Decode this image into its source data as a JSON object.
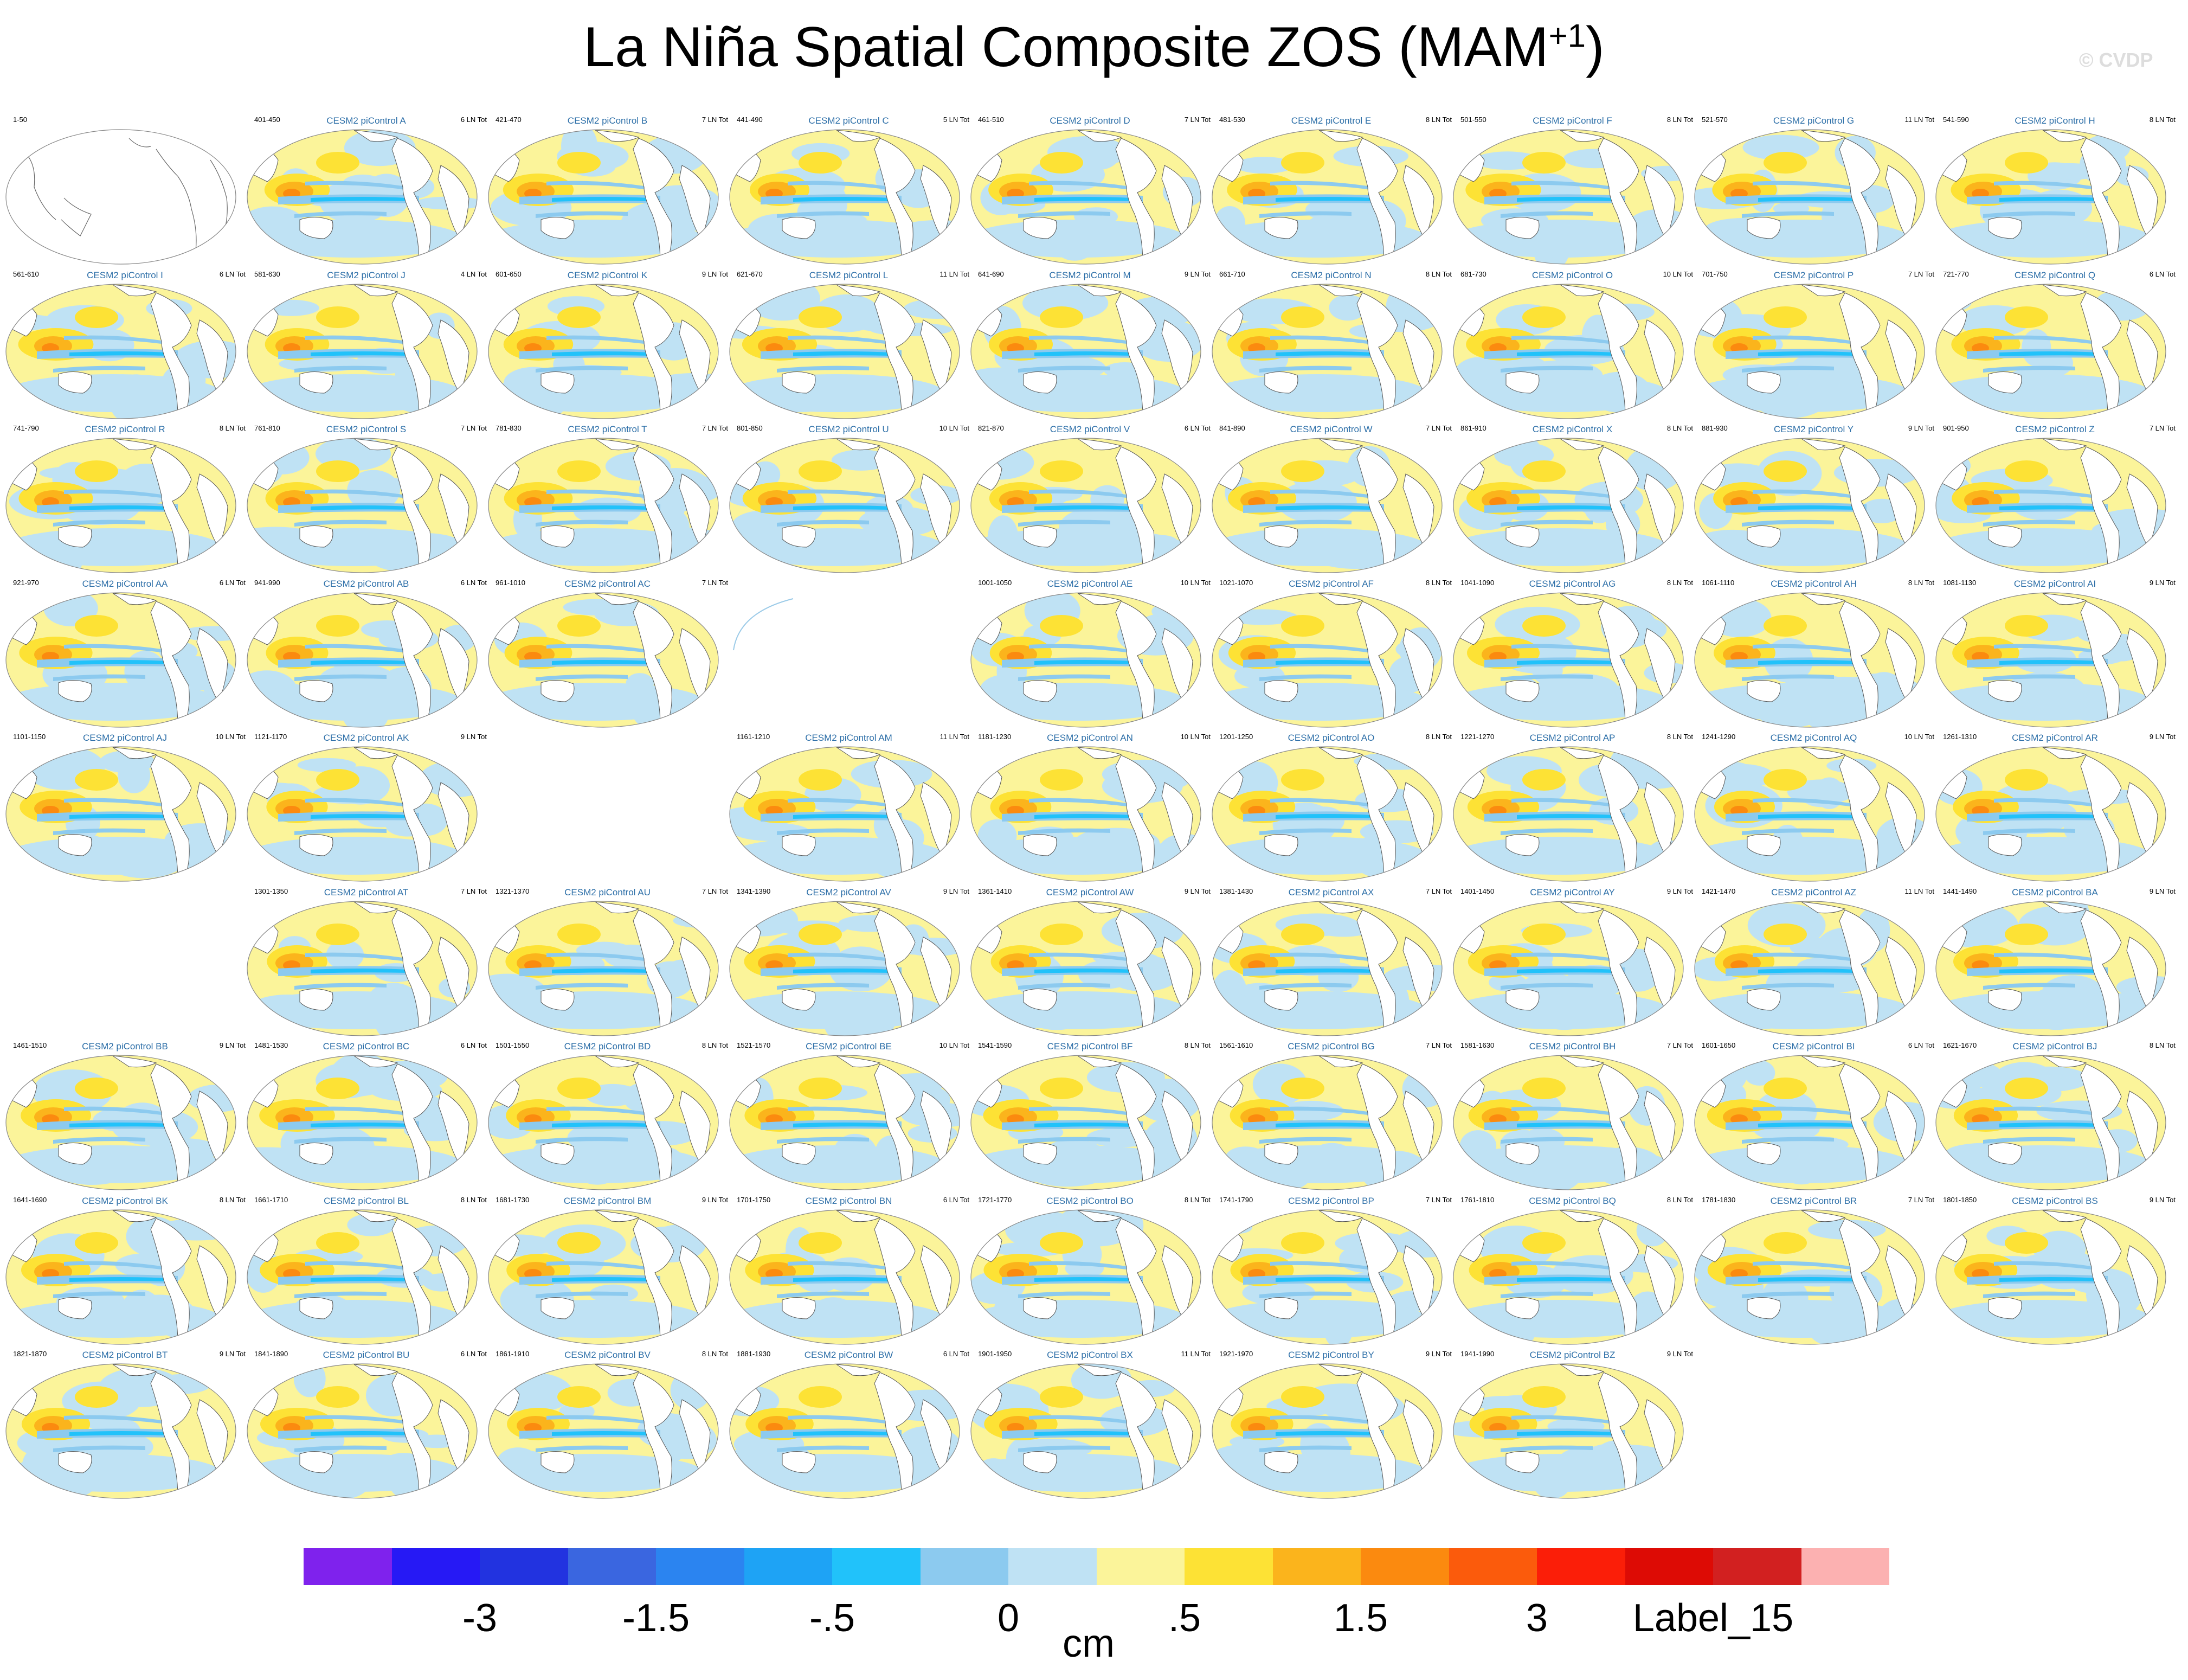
{
  "title": "La Niña Spatial Composite ZOS (MAM",
  "title_sup": "+1",
  "title_close": ")",
  "watermark": "© CVDP",
  "chart_data": {
    "type": "heatmap",
    "description_variable": "ZOS",
    "units": "cm",
    "colorbar": {
      "colors": [
        "#7f22ed",
        "#2619f5",
        "#2233e0",
        "#3a66e0",
        "#2b84f0",
        "#1ea3f5",
        "#21c2fa",
        "#8ccaef",
        "#bfe2f4",
        "#fbf49a",
        "#fde235",
        "#fbb41c",
        "#fb8a0f",
        "#fb5b0c",
        "#fb1e08",
        "#dd0b05",
        "#d22020",
        "#fcb1b1"
      ],
      "labels": [
        "-3",
        "-1.5",
        "-.5",
        "0",
        ".5",
        "1.5",
        "3",
        "Label_15"
      ]
    },
    "panels": [
      {
        "title": "",
        "years": "1-50",
        "ln_tot": "",
        "empty": false,
        "blank_map": true
      },
      {
        "title": "CESM2 piControl A",
        "years": "401-450",
        "ln_tot": "6 LN Tot"
      },
      {
        "title": "CESM2 piControl B",
        "years": "421-470",
        "ln_tot": "7 LN Tot"
      },
      {
        "title": "CESM2 piControl C",
        "years": "441-490",
        "ln_tot": "5 LN Tot"
      },
      {
        "title": "CESM2 piControl D",
        "years": "461-510",
        "ln_tot": "7 LN Tot"
      },
      {
        "title": "CESM2 piControl E",
        "years": "481-530",
        "ln_tot": "8 LN Tot"
      },
      {
        "title": "CESM2 piControl F",
        "years": "501-550",
        "ln_tot": "8 LN Tot"
      },
      {
        "title": "CESM2 piControl G",
        "years": "521-570",
        "ln_tot": "11 LN Tot"
      },
      {
        "title": "CESM2 piControl H",
        "years": "541-590",
        "ln_tot": "8 LN Tot"
      },
      {
        "title": "CESM2 piControl I",
        "years": "561-610",
        "ln_tot": "6 LN Tot"
      },
      {
        "title": "CESM2 piControl J",
        "years": "581-630",
        "ln_tot": "4 LN Tot"
      },
      {
        "title": "CESM2 piControl K",
        "years": "601-650",
        "ln_tot": "9 LN Tot"
      },
      {
        "title": "CESM2 piControl L",
        "years": "621-670",
        "ln_tot": "11 LN Tot"
      },
      {
        "title": "CESM2 piControl M",
        "years": "641-690",
        "ln_tot": "9 LN Tot"
      },
      {
        "title": "CESM2 piControl N",
        "years": "661-710",
        "ln_tot": "8 LN Tot"
      },
      {
        "title": "CESM2 piControl O",
        "years": "681-730",
        "ln_tot": "10 LN Tot"
      },
      {
        "title": "CESM2 piControl P",
        "years": "701-750",
        "ln_tot": "7 LN Tot"
      },
      {
        "title": "CESM2 piControl Q",
        "years": "721-770",
        "ln_tot": "6 LN Tot"
      },
      {
        "title": "CESM2 piControl R",
        "years": "741-790",
        "ln_tot": "8 LN Tot"
      },
      {
        "title": "CESM2 piControl S",
        "years": "761-810",
        "ln_tot": "7 LN Tot"
      },
      {
        "title": "CESM2 piControl T",
        "years": "781-830",
        "ln_tot": "7 LN Tot"
      },
      {
        "title": "CESM2 piControl U",
        "years": "801-850",
        "ln_tot": "10 LN Tot"
      },
      {
        "title": "CESM2 piControl V",
        "years": "821-870",
        "ln_tot": "6 LN Tot"
      },
      {
        "title": "CESM2 piControl W",
        "years": "841-890",
        "ln_tot": "7 LN Tot"
      },
      {
        "title": "CESM2 piControl X",
        "years": "861-910",
        "ln_tot": "8 LN Tot"
      },
      {
        "title": "CESM2 piControl Y",
        "years": "881-930",
        "ln_tot": "9 LN Tot"
      },
      {
        "title": "CESM2 piControl Z",
        "years": "901-950",
        "ln_tot": "7 LN Tot"
      },
      {
        "title": "CESM2 piControl AA",
        "years": "921-970",
        "ln_tot": "6 LN Tot"
      },
      {
        "title": "CESM2 piControl AB",
        "years": "941-990",
        "ln_tot": "6 LN Tot"
      },
      {
        "title": "CESM2 piControl AC",
        "years": "961-1010",
        "ln_tot": "7 LN Tot"
      },
      {
        "title": "",
        "years": "",
        "ln_tot": "",
        "empty": true,
        "partial": true
      },
      {
        "title": "CESM2 piControl AE",
        "years": "1001-1050",
        "ln_tot": "10 LN Tot"
      },
      {
        "title": "CESM2 piControl AF",
        "years": "1021-1070",
        "ln_tot": "8 LN Tot"
      },
      {
        "title": "CESM2 piControl AG",
        "years": "1041-1090",
        "ln_tot": "8 LN Tot"
      },
      {
        "title": "CESM2 piControl AH",
        "years": "1061-1110",
        "ln_tot": "8 LN Tot"
      },
      {
        "title": "CESM2 piControl AI",
        "years": "1081-1130",
        "ln_tot": "9 LN Tot"
      },
      {
        "title": "CESM2 piControl AJ",
        "years": "1101-1150",
        "ln_tot": "10 LN Tot"
      },
      {
        "title": "CESM2 piControl AK",
        "years": "1121-1170",
        "ln_tot": "9 LN Tot"
      },
      {
        "title": "",
        "years": "",
        "ln_tot": "",
        "empty": true
      },
      {
        "title": "CESM2 piControl AM",
        "years": "1161-1210",
        "ln_tot": "11 LN Tot"
      },
      {
        "title": "CESM2 piControl AN",
        "years": "1181-1230",
        "ln_tot": "10 LN Tot"
      },
      {
        "title": "CESM2 piControl AO",
        "years": "1201-1250",
        "ln_tot": "8 LN Tot"
      },
      {
        "title": "CESM2 piControl AP",
        "years": "1221-1270",
        "ln_tot": "8 LN Tot"
      },
      {
        "title": "CESM2 piControl AQ",
        "years": "1241-1290",
        "ln_tot": "10 LN Tot"
      },
      {
        "title": "CESM2 piControl AR",
        "years": "1261-1310",
        "ln_tot": "9 LN Tot"
      },
      {
        "title": "",
        "years": "",
        "ln_tot": "",
        "empty": true
      },
      {
        "title": "CESM2 piControl AT",
        "years": "1301-1350",
        "ln_tot": "7 LN Tot"
      },
      {
        "title": "CESM2 piControl AU",
        "years": "1321-1370",
        "ln_tot": "7 LN Tot"
      },
      {
        "title": "CESM2 piControl AV",
        "years": "1341-1390",
        "ln_tot": "9 LN Tot"
      },
      {
        "title": "CESM2 piControl AW",
        "years": "1361-1410",
        "ln_tot": "9 LN Tot"
      },
      {
        "title": "CESM2 piControl AX",
        "years": "1381-1430",
        "ln_tot": "7 LN Tot"
      },
      {
        "title": "CESM2 piControl AY",
        "years": "1401-1450",
        "ln_tot": "9 LN Tot"
      },
      {
        "title": "CESM2 piControl AZ",
        "years": "1421-1470",
        "ln_tot": "11 LN Tot"
      },
      {
        "title": "CESM2 piControl BA",
        "years": "1441-1490",
        "ln_tot": "9 LN Tot"
      },
      {
        "title": "CESM2 piControl BB",
        "years": "1461-1510",
        "ln_tot": "9 LN Tot"
      },
      {
        "title": "CESM2 piControl BC",
        "years": "1481-1530",
        "ln_tot": "6 LN Tot"
      },
      {
        "title": "CESM2 piControl BD",
        "years": "1501-1550",
        "ln_tot": "8 LN Tot"
      },
      {
        "title": "CESM2 piControl BE",
        "years": "1521-1570",
        "ln_tot": "10 LN Tot"
      },
      {
        "title": "CESM2 piControl BF",
        "years": "1541-1590",
        "ln_tot": "8 LN Tot"
      },
      {
        "title": "CESM2 piControl BG",
        "years": "1561-1610",
        "ln_tot": "7 LN Tot"
      },
      {
        "title": "CESM2 piControl BH",
        "years": "1581-1630",
        "ln_tot": "7 LN Tot"
      },
      {
        "title": "CESM2 piControl BI",
        "years": "1601-1650",
        "ln_tot": "6 LN Tot"
      },
      {
        "title": "CESM2 piControl BJ",
        "years": "1621-1670",
        "ln_tot": "8 LN Tot"
      },
      {
        "title": "CESM2 piControl BK",
        "years": "1641-1690",
        "ln_tot": "8 LN Tot"
      },
      {
        "title": "CESM2 piControl BL",
        "years": "1661-1710",
        "ln_tot": "8 LN Tot"
      },
      {
        "title": "CESM2 piControl BM",
        "years": "1681-1730",
        "ln_tot": "9 LN Tot"
      },
      {
        "title": "CESM2 piControl BN",
        "years": "1701-1750",
        "ln_tot": "6 LN Tot"
      },
      {
        "title": "CESM2 piControl BO",
        "years": "1721-1770",
        "ln_tot": "8 LN Tot"
      },
      {
        "title": "CESM2 piControl BP",
        "years": "1741-1790",
        "ln_tot": "7 LN Tot"
      },
      {
        "title": "CESM2 piControl BQ",
        "years": "1761-1810",
        "ln_tot": "8 LN Tot"
      },
      {
        "title": "CESM2 piControl BR",
        "years": "1781-1830",
        "ln_tot": "7 LN Tot"
      },
      {
        "title": "CESM2 piControl BS",
        "years": "1801-1850",
        "ln_tot": "9 LN Tot"
      },
      {
        "title": "CESM2 piControl BT",
        "years": "1821-1870",
        "ln_tot": "9 LN Tot"
      },
      {
        "title": "CESM2 piControl BU",
        "years": "1841-1890",
        "ln_tot": "6 LN Tot"
      },
      {
        "title": "CESM2 piControl BV",
        "years": "1861-1910",
        "ln_tot": "8 LN Tot"
      },
      {
        "title": "CESM2 piControl BW",
        "years": "1881-1930",
        "ln_tot": "6 LN Tot"
      },
      {
        "title": "CESM2 piControl BX",
        "years": "1901-1950",
        "ln_tot": "11 LN Tot"
      },
      {
        "title": "CESM2 piControl BY",
        "years": "1921-1970",
        "ln_tot": "9 LN Tot"
      },
      {
        "title": "CESM2 piControl BZ",
        "years": "1941-1990",
        "ln_tot": "9 LN Tot"
      }
    ]
  }
}
